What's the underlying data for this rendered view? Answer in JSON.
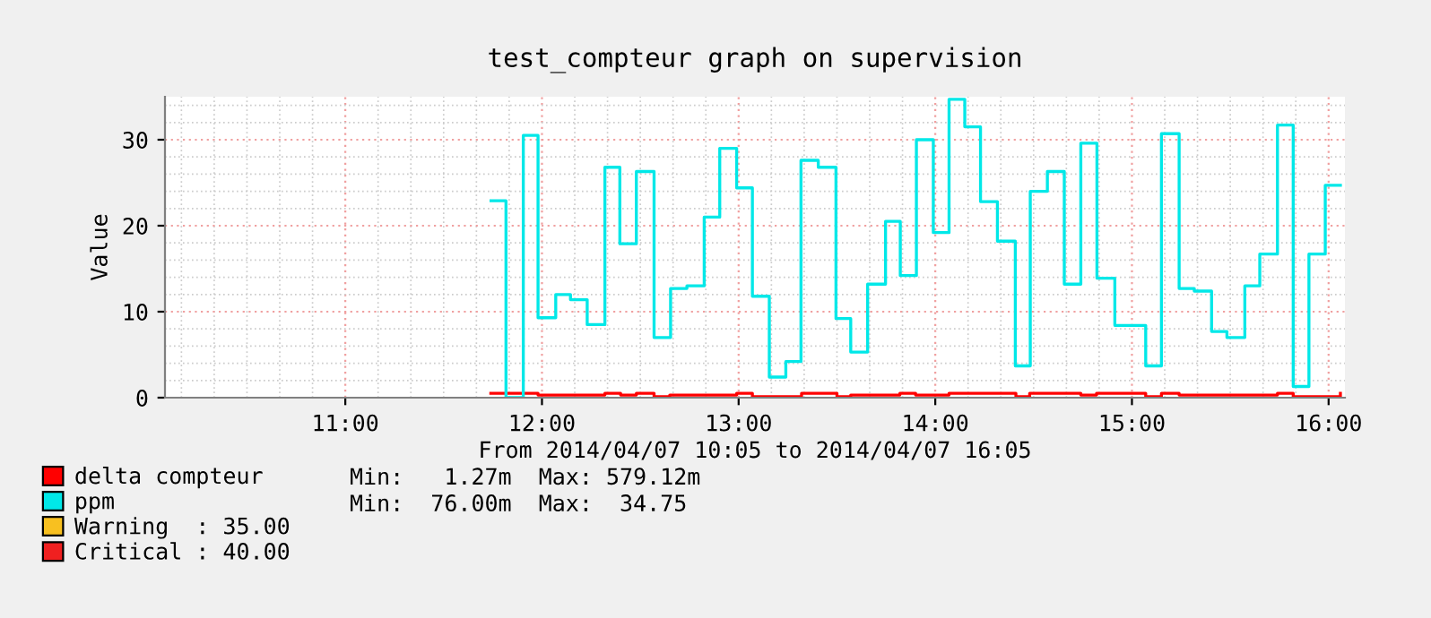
{
  "chart_data": {
    "type": "step",
    "title": "test_compteur graph on supervision",
    "ylabel": "Value",
    "xlabel": "From 2014/04/07 10:05 to 2014/04/07 16:05",
    "xlim": [
      10.083,
      16.083
    ],
    "xticks": [
      {
        "value": 11,
        "label": "11:00"
      },
      {
        "value": 12,
        "label": "12:00"
      },
      {
        "value": 13,
        "label": "13:00"
      },
      {
        "value": 14,
        "label": "14:00"
      },
      {
        "value": 15,
        "label": "15:00"
      },
      {
        "value": 16,
        "label": "16:00"
      }
    ],
    "ylim": [
      0,
      35
    ],
    "yticks": [
      0,
      10,
      20,
      30
    ],
    "grid": true,
    "legend": "bottom left",
    "series": [
      {
        "name": "delta compteur",
        "color": "#ff0000",
        "x": [
          11.74,
          11.98,
          12.32,
          12.4,
          12.48,
          12.57,
          12.65,
          12.99,
          13.07,
          13.32,
          13.5,
          13.57,
          13.82,
          13.9,
          14.07,
          14.41,
          14.48,
          14.74,
          14.82,
          15.07,
          15.15,
          15.24,
          15.57,
          15.74,
          15.82,
          16.06
        ],
        "values": [
          0.5,
          0.3,
          0.5,
          0.3,
          0.5,
          0.1,
          0.3,
          0.5,
          0.1,
          0.5,
          0.1,
          0.3,
          0.5,
          0.3,
          0.5,
          0.1,
          0.5,
          0.3,
          0.5,
          0.1,
          0.5,
          0.3,
          0.3,
          0.5,
          0.1,
          0.5
        ]
      },
      {
        "name": "ppm",
        "color": "#00e8e8",
        "x": [
          11.741,
          11.817,
          11.905,
          11.98,
          12.07,
          12.145,
          12.23,
          12.32,
          12.396,
          12.48,
          12.57,
          12.654,
          12.737,
          12.825,
          12.904,
          12.99,
          13.07,
          13.156,
          13.24,
          13.317,
          13.405,
          13.495,
          13.57,
          13.656,
          13.747,
          13.822,
          13.904,
          13.99,
          14.07,
          14.15,
          14.23,
          14.316,
          14.407,
          14.483,
          14.57,
          14.656,
          14.74,
          14.822,
          14.913,
          15.07,
          15.15,
          15.24,
          15.317,
          15.405,
          15.483,
          15.574,
          15.65,
          15.74,
          15.82,
          15.9,
          15.983,
          16.06
        ],
        "values": [
          22.9,
          0,
          30.5,
          9.3,
          12.0,
          11.4,
          8.5,
          26.8,
          17.9,
          26.3,
          7.0,
          12.7,
          13.0,
          21.0,
          29.0,
          24.4,
          11.8,
          2.4,
          4.2,
          27.6,
          26.8,
          9.2,
          5.3,
          13.2,
          20.5,
          14.2,
          30.0,
          19.2,
          34.7,
          31.5,
          22.8,
          18.2,
          3.7,
          24.0,
          26.3,
          13.2,
          29.6,
          13.9,
          8.4,
          3.7,
          30.7,
          12.7,
          12.4,
          7.7,
          7.0,
          13.0,
          16.7,
          31.7,
          1.3,
          16.7,
          24.7,
          24.7
        ]
      }
    ],
    "annotations": [
      "Min:   1.27m  Max: 579.12m",
      "Min:  76.00m  Max:  34.75",
      "Warning  : 35.00",
      "Critical : 40.00"
    ]
  }
}
